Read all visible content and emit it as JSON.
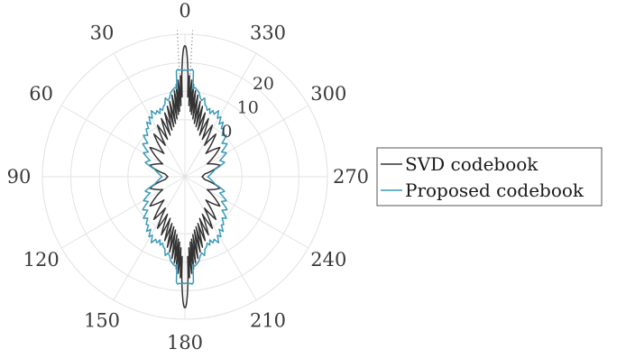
{
  "chart_data": {
    "type": "polar-line",
    "theta_direction": "counterclockwise",
    "theta_zero": "top",
    "angle_ticks": [
      {
        "deg": 0,
        "label": "0"
      },
      {
        "deg": 30,
        "label": "30"
      },
      {
        "deg": 60,
        "label": "60"
      },
      {
        "deg": 90,
        "label": "90"
      },
      {
        "deg": 120,
        "label": "120"
      },
      {
        "deg": 150,
        "label": "150"
      },
      {
        "deg": 180,
        "label": "180"
      },
      {
        "deg": 210,
        "label": "210"
      },
      {
        "deg": 240,
        "label": "240"
      },
      {
        "deg": 270,
        "label": "270"
      },
      {
        "deg": 300,
        "label": "300"
      },
      {
        "deg": 330,
        "label": "330"
      }
    ],
    "r_range": [
      -20,
      30
    ],
    "r_ticks": [
      {
        "value": 0,
        "label": "0"
      },
      {
        "value": 10,
        "label": "10"
      },
      {
        "value": 20,
        "label": "20"
      }
    ],
    "grid": true,
    "legend_position": "right",
    "reference_line": {
      "half_width_deg": 3,
      "r_max": 30
    },
    "series": [
      {
        "name": "SVD codebook",
        "color": "#333333",
        "profile": [
          [
            0,
            26
          ],
          [
            0.3,
            25.8
          ],
          [
            0.6,
            25
          ],
          [
            0.9,
            23.5
          ],
          [
            1.2,
            21.3
          ],
          [
            1.5,
            18.5
          ],
          [
            1.8,
            15
          ],
          [
            2,
            8
          ],
          [
            2.6,
            15.5
          ],
          [
            3.2,
            5
          ],
          [
            4,
            14
          ],
          [
            4.6,
            3
          ],
          [
            5.4,
            12.5
          ],
          [
            6,
            2
          ],
          [
            7,
            10.5
          ],
          [
            7.8,
            0.5
          ],
          [
            9,
            9
          ],
          [
            10,
            -1
          ],
          [
            11.5,
            7
          ],
          [
            12.5,
            -2
          ],
          [
            14,
            5.5
          ],
          [
            15.5,
            -3
          ],
          [
            17.5,
            3.5
          ],
          [
            19.5,
            -4.5
          ],
          [
            22,
            2
          ],
          [
            25,
            -5.5
          ],
          [
            28,
            0.5
          ],
          [
            32,
            -7
          ],
          [
            36,
            -1.5
          ],
          [
            42,
            -9
          ],
          [
            50,
            -4
          ],
          [
            60,
            -11
          ],
          [
            72,
            -7
          ],
          [
            82,
            -13
          ],
          [
            90,
            -14
          ]
        ]
      },
      {
        "name": "Proposed codebook",
        "color": "#3a9ab8",
        "profile": [
          [
            0,
            17.5
          ],
          [
            1,
            17.3
          ],
          [
            2,
            17.6
          ],
          [
            3,
            17.4
          ],
          [
            3.8,
            17.8
          ],
          [
            4.6,
            17.2
          ],
          [
            5.2,
            11
          ],
          [
            6.5,
            11.5
          ],
          [
            8,
            10.8
          ],
          [
            9.5,
            10
          ],
          [
            11,
            8.2
          ],
          [
            12.5,
            7.4
          ],
          [
            14,
            8.5
          ],
          [
            15.5,
            6.3
          ],
          [
            17,
            5.8
          ],
          [
            18.5,
            4.6
          ],
          [
            20,
            5.5
          ],
          [
            21.5,
            3.8
          ],
          [
            23,
            5.2
          ],
          [
            25,
            4.2
          ],
          [
            27,
            6
          ],
          [
            29,
            3.5
          ],
          [
            31,
            4.5
          ],
          [
            33,
            2
          ],
          [
            35,
            3.4
          ],
          [
            37,
            1.2
          ],
          [
            39,
            1.6
          ],
          [
            42,
            -0.5
          ],
          [
            45,
            0.6
          ],
          [
            48,
            -2.5
          ],
          [
            52,
            -1.2
          ],
          [
            56,
            -4.5
          ],
          [
            60,
            -3.2
          ],
          [
            65,
            -6.5
          ],
          [
            70,
            -5.2
          ],
          [
            76,
            -9
          ],
          [
            82,
            -10.5
          ],
          [
            90,
            -12
          ]
        ]
      }
    ]
  }
}
